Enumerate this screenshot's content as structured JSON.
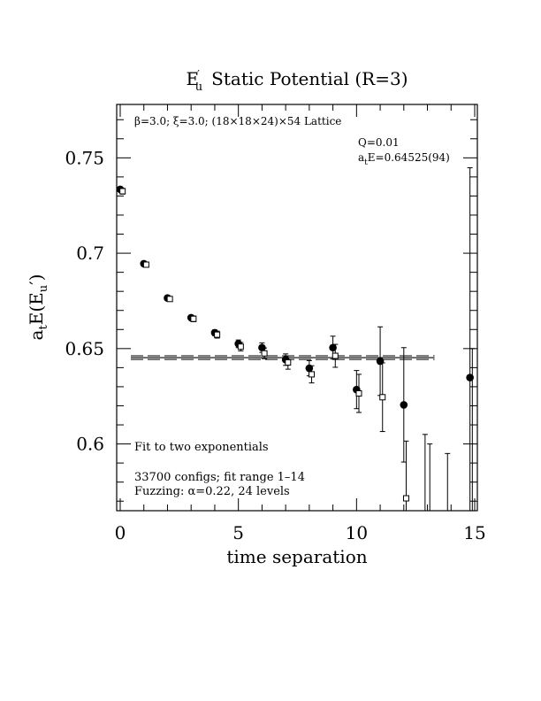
{
  "chart_data": {
    "type": "scatter",
    "title_main": "E",
    "title_sub": "u",
    "title_prime": "′",
    "title_rest": "Static Potential (R=3)",
    "xlabel": "time separation",
    "ylabel_a": "a",
    "ylabel_t": "t",
    "ylabel_E": "E(E",
    "ylabel_u": "u",
    "ylabel_close": "′)",
    "xlim": [
      0,
      15
    ],
    "ylim": [
      0.565,
      0.778
    ],
    "x_ticks": [
      {
        "value": 0,
        "label": "0"
      },
      {
        "value": 5,
        "label": "5"
      },
      {
        "value": 10,
        "label": "10"
      },
      {
        "value": 15,
        "label": "15"
      }
    ],
    "y_ticks": [
      {
        "value": 0.6,
        "label": "0.6"
      },
      {
        "value": 0.65,
        "label": "0.65"
      },
      {
        "value": 0.7,
        "label": "0.7"
      },
      {
        "value": 0.75,
        "label": "0.75"
      }
    ],
    "lattice_text": "β=3.0; ξ=3.0; (18×18×24)×54 Lattice",
    "q_text": "Q=0.01",
    "fit_value_a": "a",
    "fit_value_t": "t",
    "fit_value_rest": "E=0.64525(94)",
    "annotation_fit": "Fit to two exponentials",
    "annotation_configs": "33700 configs; fit range 1–14",
    "annotation_fuzzing": "Fuzzing: α=0.22, 24 levels",
    "fit": {
      "value": 0.64525,
      "error": 0.00094,
      "x_range": [
        1,
        13.3
      ]
    },
    "series": [
      {
        "marker": "filled-circle",
        "points": [
          {
            "x": 0,
            "y": 0.7335,
            "err": 0.0012
          },
          {
            "x": 1,
            "y": 0.6945,
            "err": 0.0008
          },
          {
            "x": 2,
            "y": 0.6765,
            "err": 0.001
          },
          {
            "x": 3,
            "y": 0.6662,
            "err": 0.0012
          },
          {
            "x": 4,
            "y": 0.6583,
            "err": 0.0015
          },
          {
            "x": 5,
            "y": 0.6525,
            "err": 0.002
          },
          {
            "x": 6,
            "y": 0.6505,
            "err": 0.0025
          },
          {
            "x": 7,
            "y": 0.6442,
            "err": 0.003
          },
          {
            "x": 8,
            "y": 0.6397,
            "err": 0.004
          },
          {
            "x": 9,
            "y": 0.6505,
            "err": 0.006
          },
          {
            "x": 10,
            "y": 0.6285,
            "err": 0.01
          },
          {
            "x": 11,
            "y": 0.6434,
            "err": 0.018
          },
          {
            "x": 12,
            "y": 0.6205,
            "err": 0.03
          },
          {
            "x": 14.8,
            "y": 0.6348,
            "err": 0.11
          }
        ]
      },
      {
        "marker": "open-square",
        "points": [
          {
            "x": 0.1,
            "y": 0.7325,
            "err": 0.0015
          },
          {
            "x": 1.1,
            "y": 0.694,
            "err": 0.001
          },
          {
            "x": 2.1,
            "y": 0.676,
            "err": 0.0012
          },
          {
            "x": 3.1,
            "y": 0.6656,
            "err": 0.0015
          },
          {
            "x": 4.1,
            "y": 0.6573,
            "err": 0.0018
          },
          {
            "x": 5.1,
            "y": 0.651,
            "err": 0.0022
          },
          {
            "x": 6.1,
            "y": 0.6475,
            "err": 0.0028
          },
          {
            "x": 7.1,
            "y": 0.6427,
            "err": 0.0035
          },
          {
            "x": 8.1,
            "y": 0.6365,
            "err": 0.0045
          },
          {
            "x": 9.1,
            "y": 0.6462,
            "err": 0.006
          },
          {
            "x": 10.1,
            "y": 0.6265,
            "err": 0.01
          },
          {
            "x": 11.1,
            "y": 0.6245,
            "err": 0.018
          },
          {
            "x": 12.1,
            "y": 0.5715,
            "err": 0.03
          },
          {
            "x": 12.9,
            "y": 0.545,
            "err": 0.06
          },
          {
            "x": 13.1,
            "y": 0.55,
            "err": 0.05
          },
          {
            "x": 13.85,
            "y": 0.545,
            "err": 0.05
          },
          {
            "x": 14.9,
            "y": 0.55,
            "err": 0.1
          }
        ]
      }
    ]
  }
}
